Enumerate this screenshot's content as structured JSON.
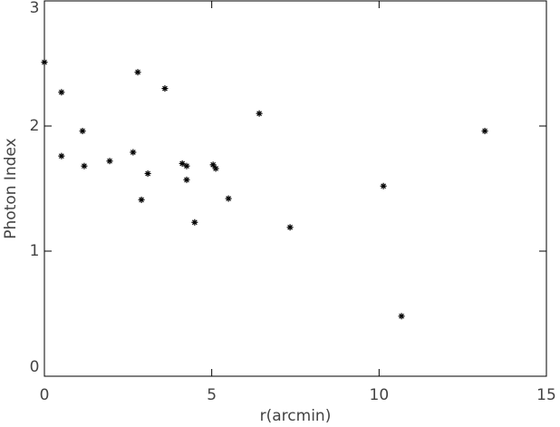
{
  "chart_data": {
    "type": "scatter",
    "x_label": "r(arcmin)",
    "y_label": "Photon Index",
    "x": [
      0,
      0.51,
      0.51,
      1.14,
      1.19,
      1.95,
      2.65,
      2.79,
      2.9,
      3.09,
      3.6,
      4.12,
      4.25,
      4.25,
      4.49,
      5.04,
      5.12,
      5.5,
      6.42,
      7.34,
      10.13,
      10.67,
      13.16
    ],
    "values": [
      2.51,
      2.27,
      1.76,
      1.96,
      1.68,
      1.72,
      1.79,
      2.43,
      1.41,
      1.62,
      2.3,
      1.7,
      1.68,
      1.57,
      1.23,
      1.69,
      1.66,
      1.42,
      2.1,
      1.19,
      1.52,
      0.48,
      1.96
    ],
    "color": "#000000",
    "xlim": [
      0,
      15
    ],
    "xticks": [
      0,
      5,
      10,
      15
    ],
    "ylim": [
      0,
      3
    ],
    "yticks": [
      0,
      1,
      2,
      3
    ]
  }
}
